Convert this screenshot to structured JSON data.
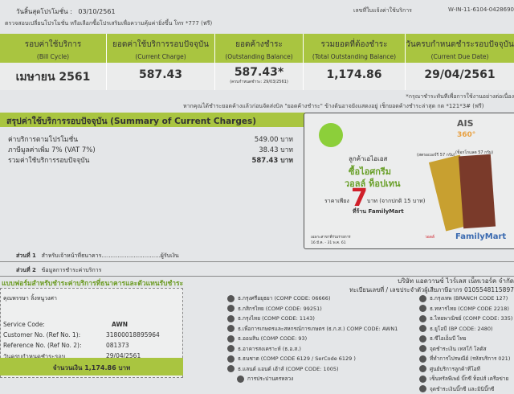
{
  "top": {
    "promo_end_label": "วันสิ้นสุดโปรโมชั่น :",
    "promo_end_date": "03/10/2561",
    "promo_note": "ตรวจสอบเปลี่ยนโปรโมชั่น หรือเลือกซื้อโปรเสริมเพื่อความคุ้มค่ายิ่งขึ้น โทร *777 (ฟรี)",
    "invoice_label": "เลขที่ใบแจ้งค่าใช้บริการ",
    "invoice_no": "W-IN-11-6104-0428690"
  },
  "billing": {
    "columns": [
      {
        "th": "รอบค่าใช้บริการ",
        "en": "(Bill Cycle)",
        "value": "เมษายน 2561"
      },
      {
        "th": "ยอดค่าใช้บริการรอบปัจจุบัน",
        "en": "(Current Charge)",
        "value": "587.43"
      },
      {
        "th": "ยอดค้างชำระ",
        "en": "(Outstanding Balance)",
        "value": "587.43*",
        "note": "(ครบกำหนดชำระ: 29/03/2561)"
      },
      {
        "th": "รวมยอดที่ต้องชำระ",
        "en": "(Total Outstanding Balance)",
        "value": "1,174.86"
      },
      {
        "th": "วันครบกำหนดชำระรอบปัจจุบัน",
        "en": "(Current Due Date)",
        "value": "29/04/2561"
      }
    ],
    "note1": "*กรุณาชำระทันทีเพื่อการใช้งานอย่างต่อเนื่อง",
    "note2": "หากคุณได้ชำระยอดค้างแล้วก่อนจัดส่งบิล \"ยอดค้างชำระ\" ข้างต้นอาจยังแสดงอยู่ เช็กยอดค้างชำระล่าสุด กด *121*3# (ฟรี)"
  },
  "summary": {
    "title": "สรุปค่าใช้บริการรอบปัจจุบัน (Summary of Current Charges)",
    "items": [
      {
        "label": "ค่าบริการตามโปรโมชั่น",
        "amount": "549.00 บาท"
      },
      {
        "label": "ภาษีมูลค่าเพิ่ม 7% (VAT 7%)",
        "amount": "38.43 บาท"
      },
      {
        "label": "รวมค่าใช้บริการรอบปัจจุบัน",
        "amount": "587.43 บาท"
      }
    ]
  },
  "ad": {
    "brand": "AIS",
    "brand2": "360°",
    "line1": "ลูกค้าเอไอเอส",
    "line2": "ซื้อไอศกรีม",
    "line3": "วอลล์ ท็อปเทน",
    "price_prefix": "ราคาเพียง",
    "price": "7",
    "price_suffix": "บาท (จากปกติ 15 บาท)",
    "store": "ที่ร้าน FamilyMart",
    "flavor1": "(สตรอเบอร์รี 57 กรัม)",
    "flavor2": "(ช็อกโกแลต 57 กรัม)",
    "period": "เฉพาะสาขาที่ร่วมรายการ 16 มี.ค. - 31 พ.ค. 61",
    "logo_walls": "วอลล์",
    "logo_fm": "FamilyMart"
  },
  "sections": {
    "s1_label": "ส่วนที่ 1",
    "s1_text": "สำหรับเจ้าหน้าที่ธนาคาร.................................ผู้รับเงิน",
    "s2_label": "ส่วนที่ 2",
    "s2_text": "ข้อมูลการชำระค่าบริการ"
  },
  "form": {
    "title": "แบบฟอร์มสำหรับชำระค่าบริการที่ธนาคารและตัวแทนรับชำระ",
    "company": "บริษัท แอดวานซ์ ไวร์เลส เน็ทเวอร์ค จำกัด",
    "tax_id": "ทะเบียนเลขที่ / เลขประจำตัวผู้เสียภาษีอากร 0105548115897",
    "customer_name": "คุณพรรษา ลิ้งหนูวงศา",
    "rows": [
      {
        "label": "Service Code:",
        "value": "AWN"
      },
      {
        "label": "Customer No. (Ref No. 1):",
        "value": "31800018895964"
      },
      {
        "label": "Reference No. (Ref No. 2):",
        "value": "081373"
      },
      {
        "label": "วันครบกำหนดชำระรอบปัจจุบัน",
        "value": "29/04/2561"
      }
    ],
    "amount": "จำนวนเงิน 1,174.86 บาท"
  },
  "banks_mid": [
    "ธ.กรุงศรีอยุธยา (COMP CODE: 06666)",
    "ธ.กสิกรไทย (COMP CODE: 99251)",
    "ธ.กรุงไทย (COMP CODE: 1143)",
    "ธ.เพื่อการเกษตรและสหกรณ์การเกษตร (ธ.ก.ส.) COMP CODE: AWN1",
    "ธ.ออมสิน (COMP CODE: 93)",
    "ธ.อาคารสงเคราะห์ (ธ.อ.ส.)",
    "ธ.ธนชาต (COMP CODE 6129 / SerCode 6129 )",
    "ธ.แลนด์ แอนด์ เฮ้าส์ (COMP CODE: 1005)",
    "การประปานครหลวง"
  ],
  "banks_right": [
    "ธ.กรุงเทพ (BRANCH CODE 127)",
    "ธ.ทหารไทย (COMP CODE 2218)",
    "ธ.ไทยพาณิชย์ (COMP CODE: 335)",
    "ธ.ยูโอบี (BP CODE: 2480)",
    "ธ.ซีไอเอ็มบี ไทย",
    "จุดชำระเงิน เทสโก้ โลตัส",
    "ที่ทำการไปรษณีย์ (รหัสบริการ 021)",
    "ศูนย์บริการลูกค้าทีโอที",
    "เซ็นทรัลพีเพย์ บิ๊กซี ท็อปส์ เครือข่าย",
    "จุดชำระเงินบิ๊กซี และมินิบิ๊กซี"
  ]
}
